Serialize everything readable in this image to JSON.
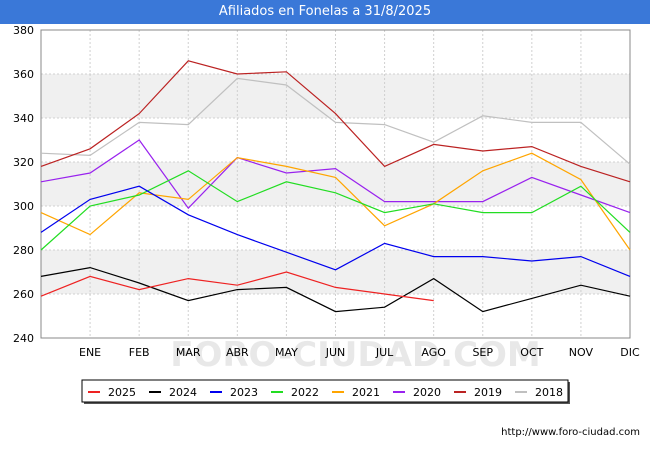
{
  "title": "Afiliados en Fonelas a 31/8/2025",
  "source": "http://www.foro-ciudad.com",
  "watermark": "FORO-CIUDAD.COM",
  "colors": {
    "title_bg": "#3a78d8",
    "plot_band": "#f0f0f0",
    "grid": "#d0d0d0"
  },
  "chart_data": {
    "type": "line",
    "categories": [
      "",
      "ENE",
      "FEB",
      "MAR",
      "ABR",
      "MAY",
      "JUN",
      "JUL",
      "AGO",
      "SEP",
      "OCT",
      "NOV",
      "DIC"
    ],
    "ylim": [
      240,
      380
    ],
    "yticks": [
      240,
      260,
      280,
      300,
      320,
      340,
      360,
      380
    ],
    "grid": true,
    "legend_position": "bottom",
    "series": [
      {
        "name": "2025",
        "color": "#ee2222",
        "values": [
          259,
          268,
          262,
          267,
          264,
          270,
          263,
          260,
          257,
          null,
          null,
          null,
          null
        ]
      },
      {
        "name": "2024",
        "color": "#000000",
        "values": [
          268,
          272,
          265,
          257,
          262,
          263,
          252,
          254,
          267,
          252,
          258,
          264,
          259
        ]
      },
      {
        "name": "2023",
        "color": "#0000ee",
        "values": [
          288,
          303,
          309,
          296,
          287,
          279,
          271,
          283,
          277,
          277,
          275,
          277,
          268
        ]
      },
      {
        "name": "2022",
        "color": "#22dd22",
        "values": [
          280,
          300,
          305,
          316,
          302,
          311,
          306,
          297,
          301,
          297,
          297,
          309,
          288
        ]
      },
      {
        "name": "2021",
        "color": "#ffa500",
        "values": [
          297,
          287,
          306,
          303,
          322,
          318,
          313,
          291,
          301,
          316,
          324,
          312,
          280
        ]
      },
      {
        "name": "2020",
        "color": "#9922ee",
        "values": [
          311,
          315,
          330,
          299,
          322,
          315,
          317,
          302,
          302,
          302,
          313,
          305,
          297
        ]
      },
      {
        "name": "2019",
        "color": "#bb2222",
        "values": [
          318,
          326,
          342,
          366,
          360,
          361,
          342,
          318,
          328,
          325,
          327,
          318,
          311
        ]
      },
      {
        "name": "2018",
        "color": "#c0c0c0",
        "values": [
          324,
          323,
          338,
          337,
          358,
          355,
          338,
          337,
          329,
          341,
          338,
          338,
          319
        ]
      }
    ]
  }
}
